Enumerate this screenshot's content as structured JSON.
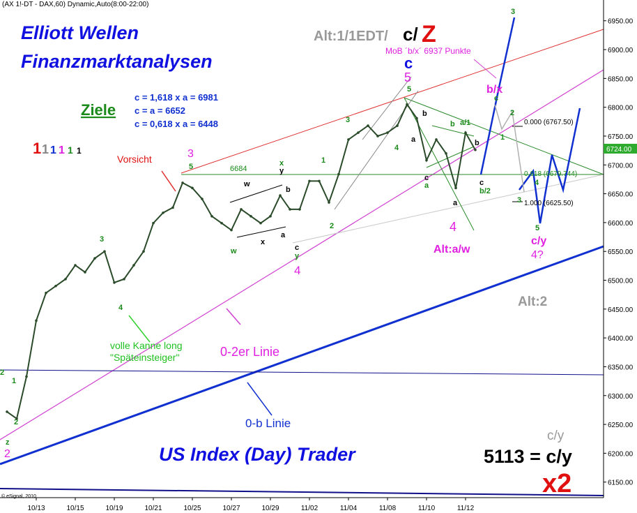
{
  "chart_data": {
    "type": "line",
    "title": "(AX 1!-DT - DAX,60) Dynamic,Auto(8:00-22:00)",
    "categories": [
      null,
      null,
      null,
      "10/13",
      null,
      null,
      null,
      "10/15",
      null,
      null,
      null,
      "10/19",
      null,
      null,
      null,
      "10/21",
      null,
      null,
      null,
      "10/25",
      null,
      null,
      null,
      "10/27",
      null,
      null,
      null,
      "10/29",
      null,
      null,
      null,
      "11/02",
      null,
      null,
      null,
      "11/04",
      null,
      null,
      null,
      "11/08",
      null,
      null,
      null,
      "11/10",
      null,
      null,
      null,
      "11/12",
      null
    ],
    "values": [
      6272,
      6260,
      6333,
      6430,
      6478,
      6490,
      6502,
      6526,
      6514,
      6538,
      6550,
      6496,
      6502,
      6526,
      6550,
      6599,
      6617,
      6626,
      6669,
      6660,
      6641,
      6611,
      6599,
      6587,
      6623,
      6611,
      6599,
      6611,
      6647,
      6623,
      6623,
      6672,
      6672,
      6635,
      6684,
      6744,
      6756,
      6768,
      6750,
      6756,
      6768,
      6805,
      6781,
      6708,
      6744,
      6720,
      6660,
      6756,
      6726
    ],
    "color": "#2a4a2a",
    "ylim": [
      6123,
      6986
    ],
    "yticks": [
      {
        "value": 6150,
        "label": "6150.00"
      },
      {
        "value": 6200,
        "label": "6200.00"
      },
      {
        "value": 6250,
        "label": "6250.00"
      },
      {
        "value": 6300,
        "label": "6300.00"
      },
      {
        "value": 6350,
        "label": "6350.00"
      },
      {
        "value": 6400,
        "label": "6400.00"
      },
      {
        "value": 6450,
        "label": "6450.00"
      },
      {
        "value": 6500,
        "label": "6500.00"
      },
      {
        "value": 6550,
        "label": "6550.00"
      },
      {
        "value": 6600,
        "label": "6600.00"
      },
      {
        "value": 6650,
        "label": "6650.00"
      },
      {
        "value": 6700,
        "label": "6700.00"
      },
      {
        "value": 6750,
        "label": "6750.00"
      },
      {
        "value": 6800,
        "label": "6800.00"
      },
      {
        "value": 6850,
        "label": "6850.00"
      },
      {
        "value": 6900,
        "label": "6900.00"
      },
      {
        "value": 6950,
        "label": "6950.00"
      }
    ],
    "grid": false,
    "annotations": [
      "Elliott Wellen",
      "Finanzmarktanalysen",
      "Alt:1/1EDT/",
      "c/",
      "Z",
      "MoB ´b/x´ 6937 Punkte",
      "c",
      "5",
      "Ziele",
      "c = 1,618 x a = 6981",
      "c = a = 6652",
      "c = 0,618 x a = 6448",
      "1",
      "1",
      "1",
      "1",
      "1",
      "1",
      "Vorsicht",
      "3",
      "5",
      "6684",
      "Alt:a/w",
      "4",
      "b/x",
      "0.000 (6767.50)",
      "0.618 (6679.744)",
      "1.000 (6625.50)",
      "c/y",
      "4?",
      "Alt:2",
      "volle Kanne long",
      "\"Späteinsteiger\"",
      "0-2er Linie",
      "0-b Linie",
      "US Index (Day) Trader",
      "c/y",
      "5113 = c/y",
      "x2",
      "© eSignal, 2010",
      "6724.00",
      "4",
      "4",
      "3",
      "2",
      "w",
      "x",
      "y",
      "w",
      "x",
      "a",
      "b",
      "c",
      "y",
      "1",
      "2",
      "3",
      "4",
      "5",
      "b",
      "a",
      "c",
      "a",
      "b",
      "a/1",
      "a",
      "b",
      "c",
      "b/2",
      "1",
      "2",
      "3",
      "c",
      "3",
      "4",
      "5",
      "2",
      "z",
      "2",
      "1"
    ]
  }
}
